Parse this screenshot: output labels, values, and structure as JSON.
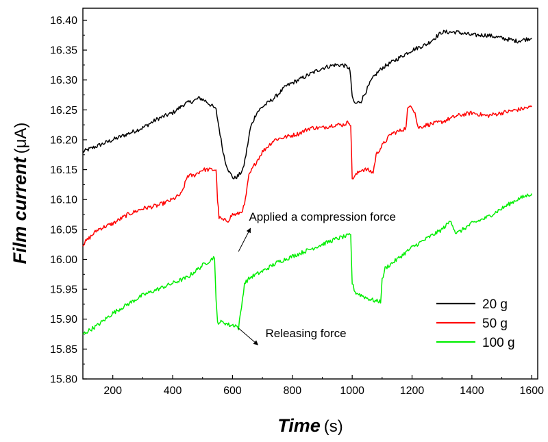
{
  "chart_data": {
    "type": "line",
    "title": "",
    "xlabel": "Time",
    "xunit": "(s)",
    "ylabel": "Film current",
    "yunit": "(μA)",
    "xlim": [
      100,
      1620
    ],
    "ylim": [
      15.8,
      16.42
    ],
    "xticks": [
      200,
      400,
      600,
      800,
      1000,
      1200,
      1400,
      1600
    ],
    "yticks": [
      "15.80",
      "15.85",
      "15.90",
      "15.95",
      "16.00",
      "16.05",
      "16.10",
      "16.15",
      "16.20",
      "16.25",
      "16.30",
      "16.35",
      "16.40"
    ],
    "grid": false,
    "legend": "bottom-right",
    "series": [
      {
        "name": "20 g",
        "color": "#000000",
        "points": [
          [
            100,
            16.18
          ],
          [
            150,
            16.19
          ],
          [
            200,
            16.2
          ],
          [
            250,
            16.21
          ],
          [
            300,
            16.22
          ],
          [
            350,
            16.235
          ],
          [
            400,
            16.245
          ],
          [
            440,
            16.26
          ],
          [
            470,
            16.265
          ],
          [
            490,
            16.27
          ],
          [
            510,
            16.265
          ],
          [
            535,
            16.255
          ],
          [
            545,
            16.25
          ],
          [
            555,
            16.22
          ],
          [
            565,
            16.19
          ],
          [
            575,
            16.165
          ],
          [
            590,
            16.145
          ],
          [
            605,
            16.135
          ],
          [
            620,
            16.14
          ],
          [
            635,
            16.15
          ],
          [
            645,
            16.175
          ],
          [
            660,
            16.22
          ],
          [
            680,
            16.245
          ],
          [
            700,
            16.255
          ],
          [
            740,
            16.27
          ],
          [
            780,
            16.29
          ],
          [
            820,
            16.3
          ],
          [
            860,
            16.31
          ],
          [
            900,
            16.32
          ],
          [
            940,
            16.325
          ],
          [
            970,
            16.325
          ],
          [
            990,
            16.32
          ],
          [
            995,
            16.305
          ],
          [
            1000,
            16.27
          ],
          [
            1010,
            16.26
          ],
          [
            1030,
            16.265
          ],
          [
            1045,
            16.28
          ],
          [
            1065,
            16.3
          ],
          [
            1080,
            16.31
          ],
          [
            1100,
            16.32
          ],
          [
            1150,
            16.335
          ],
          [
            1200,
            16.35
          ],
          [
            1250,
            16.36
          ],
          [
            1300,
            16.38
          ],
          [
            1350,
            16.38
          ],
          [
            1400,
            16.375
          ],
          [
            1450,
            16.375
          ],
          [
            1500,
            16.37
          ],
          [
            1550,
            16.365
          ],
          [
            1600,
            16.37
          ]
        ]
      },
      {
        "name": "50 g",
        "color": "#ff0000",
        "points": [
          [
            100,
            16.025
          ],
          [
            150,
            16.05
          ],
          [
            200,
            16.06
          ],
          [
            250,
            16.075
          ],
          [
            300,
            16.085
          ],
          [
            350,
            16.09
          ],
          [
            400,
            16.1
          ],
          [
            430,
            16.11
          ],
          [
            450,
            16.14
          ],
          [
            470,
            16.14
          ],
          [
            500,
            16.15
          ],
          [
            530,
            16.15
          ],
          [
            545,
            16.15
          ],
          [
            550,
            16.1
          ],
          [
            555,
            16.07
          ],
          [
            570,
            16.065
          ],
          [
            585,
            16.065
          ],
          [
            600,
            16.075
          ],
          [
            615,
            16.075
          ],
          [
            630,
            16.08
          ],
          [
            640,
            16.09
          ],
          [
            655,
            16.14
          ],
          [
            670,
            16.155
          ],
          [
            700,
            16.18
          ],
          [
            740,
            16.2
          ],
          [
            780,
            16.205
          ],
          [
            820,
            16.21
          ],
          [
            860,
            16.22
          ],
          [
            900,
            16.22
          ],
          [
            940,
            16.225
          ],
          [
            970,
            16.225
          ],
          [
            990,
            16.23
          ],
          [
            995,
            16.225
          ],
          [
            1000,
            16.135
          ],
          [
            1010,
            16.14
          ],
          [
            1030,
            16.15
          ],
          [
            1050,
            16.15
          ],
          [
            1070,
            16.145
          ],
          [
            1080,
            16.175
          ],
          [
            1100,
            16.19
          ],
          [
            1130,
            16.21
          ],
          [
            1160,
            16.215
          ],
          [
            1180,
            16.22
          ],
          [
            1185,
            16.25
          ],
          [
            1195,
            16.26
          ],
          [
            1210,
            16.245
          ],
          [
            1220,
            16.22
          ],
          [
            1250,
            16.225
          ],
          [
            1300,
            16.23
          ],
          [
            1350,
            16.24
          ],
          [
            1400,
            16.245
          ],
          [
            1450,
            16.24
          ],
          [
            1500,
            16.245
          ],
          [
            1550,
            16.25
          ],
          [
            1600,
            16.255
          ]
        ]
      },
      {
        "name": "100 g",
        "color": "#00ee00",
        "points": [
          [
            100,
            15.875
          ],
          [
            150,
            15.89
          ],
          [
            200,
            15.91
          ],
          [
            250,
            15.925
          ],
          [
            300,
            15.94
          ],
          [
            350,
            15.95
          ],
          [
            400,
            15.96
          ],
          [
            450,
            15.97
          ],
          [
            500,
            15.99
          ],
          [
            530,
            16.0
          ],
          [
            540,
            16.005
          ],
          [
            545,
            15.93
          ],
          [
            550,
            15.895
          ],
          [
            570,
            15.895
          ],
          [
            590,
            15.89
          ],
          [
            610,
            15.89
          ],
          [
            620,
            15.885
          ],
          [
            630,
            15.92
          ],
          [
            640,
            15.96
          ],
          [
            660,
            15.97
          ],
          [
            700,
            15.98
          ],
          [
            750,
            15.995
          ],
          [
            800,
            16.005
          ],
          [
            850,
            16.015
          ],
          [
            900,
            16.025
          ],
          [
            950,
            16.035
          ],
          [
            990,
            16.04
          ],
          [
            995,
            16.04
          ],
          [
            1000,
            15.96
          ],
          [
            1010,
            15.945
          ],
          [
            1030,
            15.94
          ],
          [
            1050,
            15.935
          ],
          [
            1080,
            15.93
          ],
          [
            1095,
            15.93
          ],
          [
            1100,
            15.965
          ],
          [
            1110,
            15.985
          ],
          [
            1150,
            16.0
          ],
          [
            1200,
            16.02
          ],
          [
            1250,
            16.035
          ],
          [
            1300,
            16.05
          ],
          [
            1330,
            16.065
          ],
          [
            1345,
            16.045
          ],
          [
            1355,
            16.045
          ],
          [
            1400,
            16.06
          ],
          [
            1450,
            16.07
          ],
          [
            1500,
            16.085
          ],
          [
            1550,
            16.1
          ],
          [
            1600,
            16.11
          ]
        ]
      }
    ],
    "annotations": [
      {
        "text": "Applied a compression force",
        "x": 655,
        "y": 16.065,
        "arrow_from": [
          620,
          16.013
        ],
        "arrow_to": [
          660,
          16.052
        ]
      },
      {
        "text": "Releasing force",
        "x": 710,
        "y": 15.87,
        "arrow_from": [
          620,
          15.885
        ],
        "arrow_to": [
          685,
          15.857
        ]
      }
    ]
  }
}
